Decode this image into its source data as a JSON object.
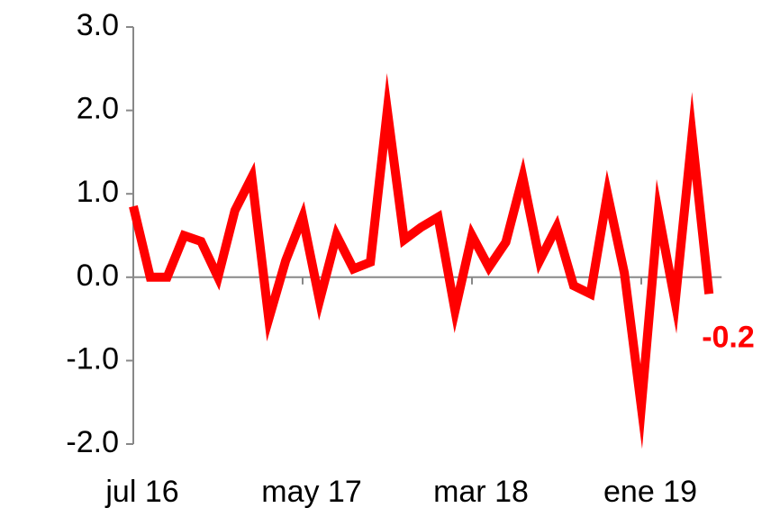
{
  "chart_data": {
    "type": "line",
    "categories": [
      "jul 16",
      null,
      null,
      null,
      null,
      null,
      null,
      null,
      null,
      null,
      "may 17",
      null,
      null,
      null,
      null,
      null,
      null,
      null,
      null,
      null,
      "mar 18",
      null,
      null,
      null,
      null,
      null,
      null,
      null,
      null,
      null,
      "ene 19",
      null,
      null,
      null,
      null
    ],
    "series": [
      {
        "color": "#ff0000",
        "values": [
          0.85,
          0.0,
          0.0,
          0.5,
          0.43,
          0.0,
          0.8,
          1.2,
          -0.5,
          0.2,
          0.72,
          -0.28,
          0.5,
          0.1,
          0.18,
          2.0,
          0.45,
          0.6,
          0.72,
          -0.4,
          0.5,
          0.12,
          0.42,
          1.2,
          0.2,
          0.6,
          -0.1,
          -0.2,
          1.0,
          0.05,
          -1.55,
          0.78,
          -0.3,
          1.7,
          -0.2
        ],
        "value_labels": [
          null,
          null,
          null,
          null,
          null,
          null,
          null,
          null,
          null,
          null,
          null,
          null,
          null,
          null,
          null,
          null,
          null,
          null,
          null,
          null,
          null,
          null,
          null,
          null,
          null,
          null,
          null,
          null,
          null,
          null,
          null,
          null,
          null,
          null,
          "-0.2"
        ]
      }
    ],
    "ylim": [
      -2,
      3
    ],
    "yticks": [
      {
        "value": -2,
        "label": "-2.0"
      },
      {
        "value": -1,
        "label": "-1.0"
      },
      {
        "value": 0,
        "label": "0.0"
      },
      {
        "value": 1,
        "label": "1.0"
      },
      {
        "value": 2,
        "label": "2.0"
      },
      {
        "value": 3,
        "label": "3.0"
      }
    ]
  }
}
